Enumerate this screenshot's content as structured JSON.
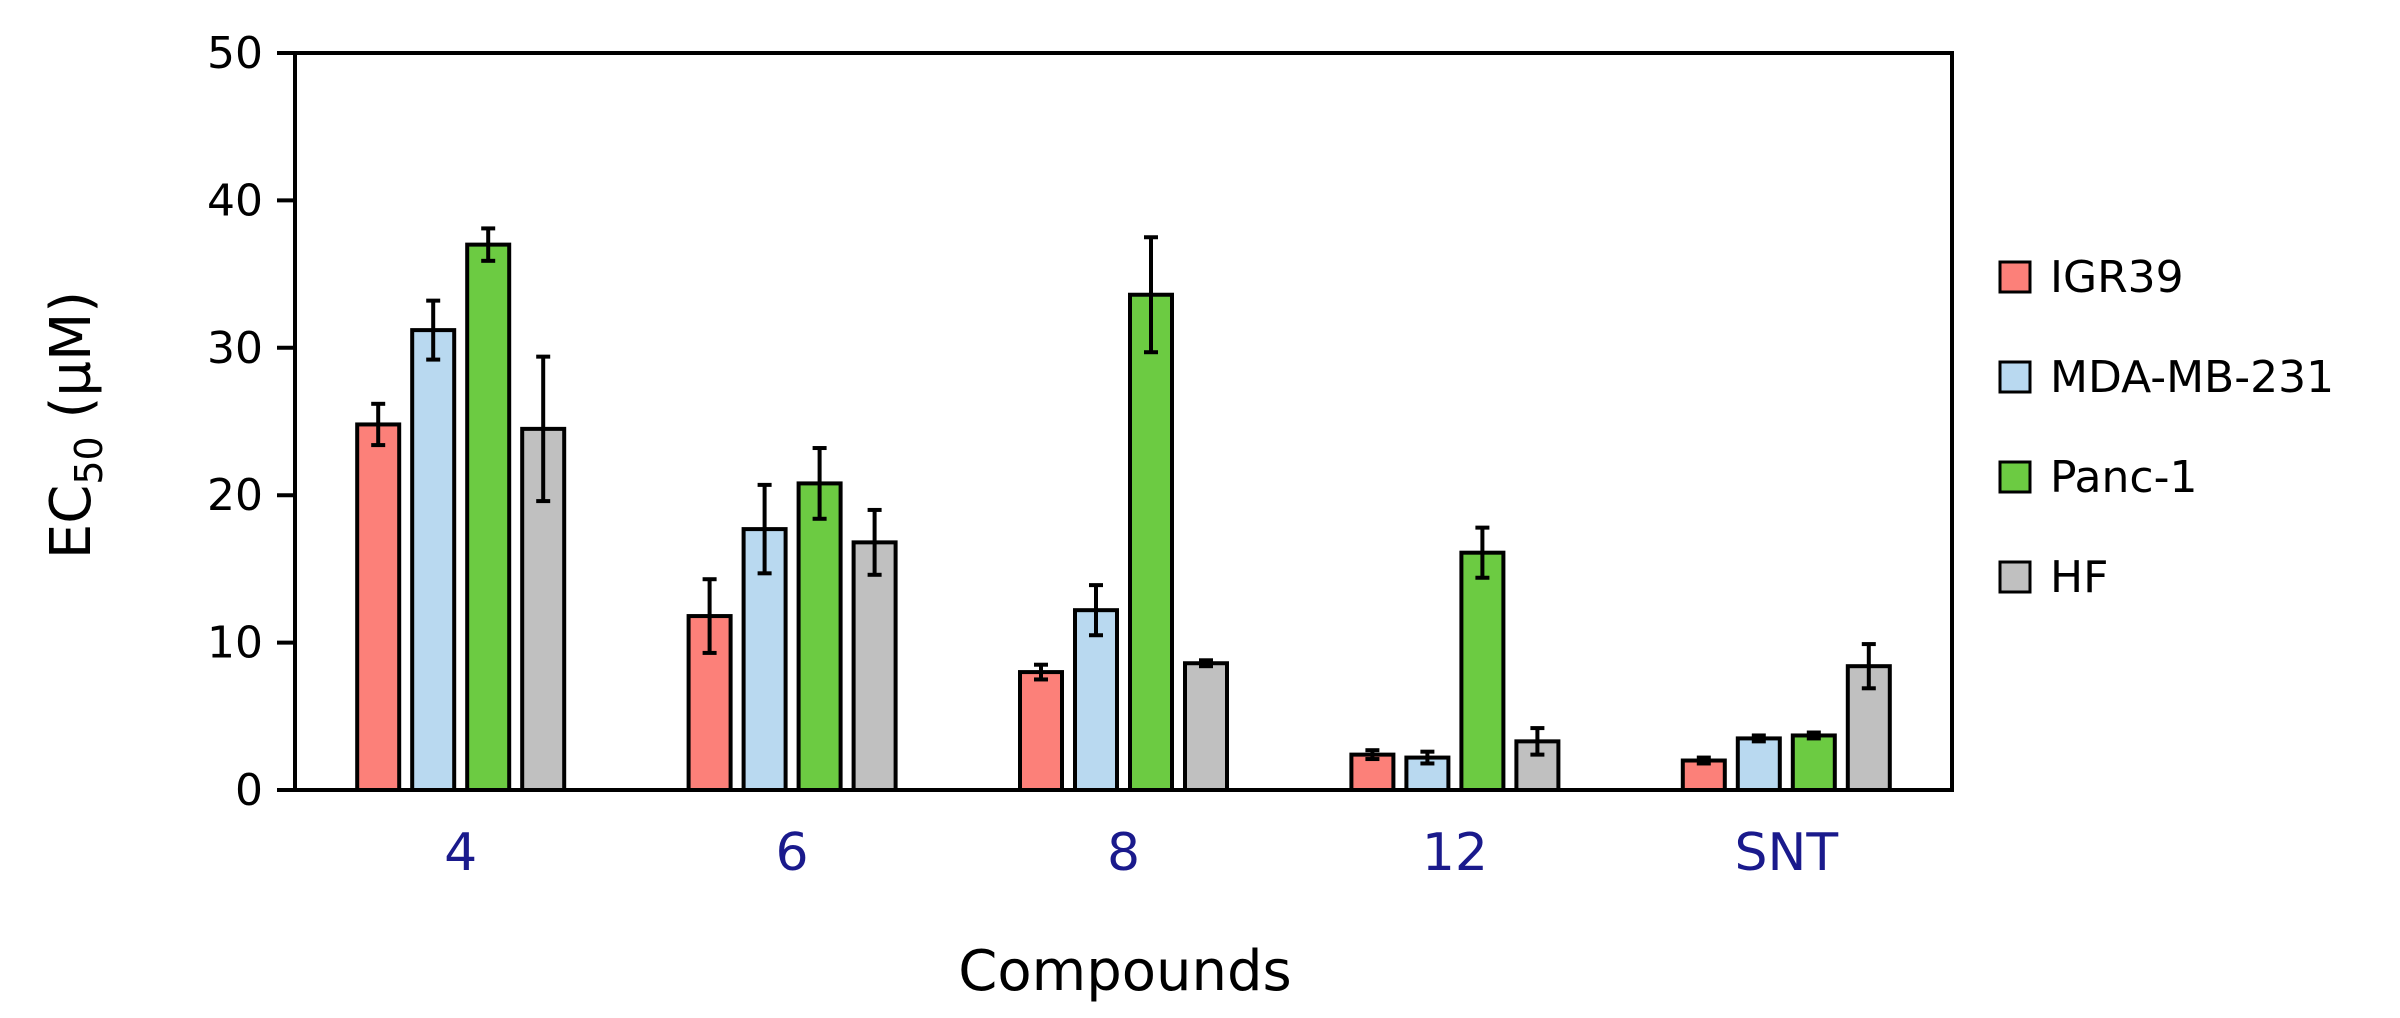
{
  "chart_data": {
    "type": "bar",
    "title": "",
    "xlabel": "Compounds",
    "ylabel_main": "EC",
    "ylabel_sub": "50",
    "ylabel_unit": " (µM)",
    "ylim": [
      0,
      50
    ],
    "yticks": [
      "0",
      "10",
      "20",
      "30",
      "40",
      "50"
    ],
    "categories": [
      "4",
      "6",
      "8",
      "12",
      "SNT"
    ],
    "category_color": "#1a1a8c",
    "legend_position": "right",
    "grid": false,
    "series": [
      {
        "name": "IGR39",
        "color": "#fc8079",
        "values": [
          24.8,
          11.8,
          8.0,
          2.4,
          2.0
        ],
        "errors": [
          1.4,
          2.5,
          0.5,
          0.3,
          0.2
        ]
      },
      {
        "name": "MDA-MB-231",
        "color": "#b9d9f0",
        "values": [
          31.2,
          17.7,
          12.2,
          2.2,
          3.5
        ],
        "errors": [
          2.0,
          3.0,
          1.7,
          0.4,
          0.2
        ]
      },
      {
        "name": "Panc-1",
        "color": "#6ccb42",
        "values": [
          37.0,
          20.8,
          33.6,
          16.1,
          3.7
        ],
        "errors": [
          1.1,
          2.4,
          3.9,
          1.7,
          0.2
        ]
      },
      {
        "name": "HF",
        "color": "#c0c0c0",
        "values": [
          24.5,
          16.8,
          8.6,
          3.3,
          8.4
        ],
        "errors": [
          4.9,
          2.2,
          0.2,
          0.9,
          1.5
        ]
      }
    ]
  }
}
